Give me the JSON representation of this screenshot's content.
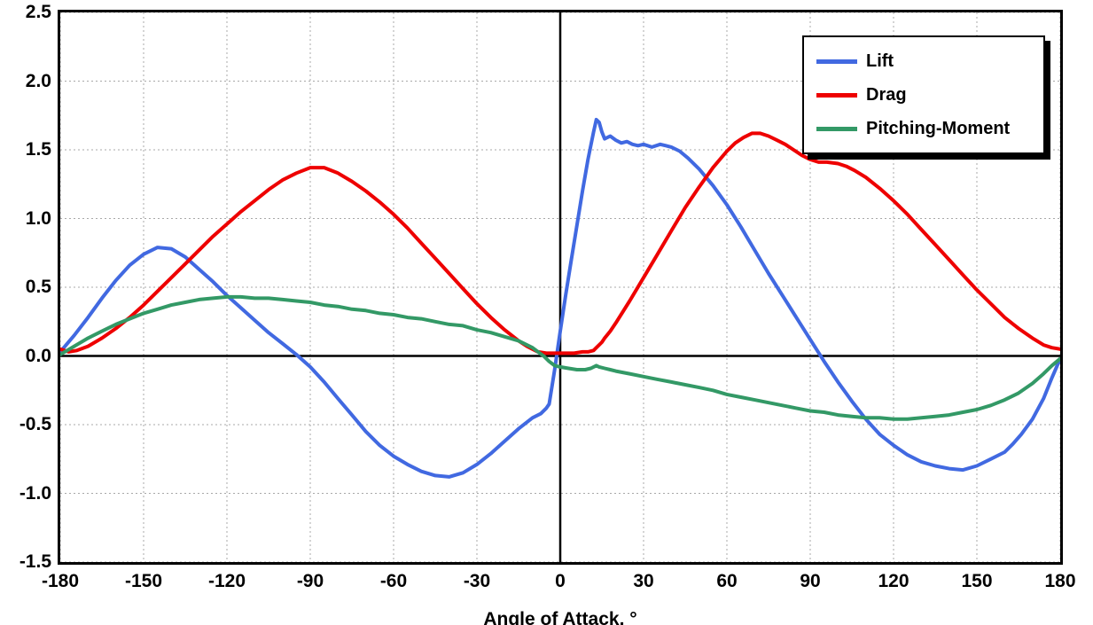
{
  "chart_data": {
    "type": "line",
    "title": "",
    "xlabel": "Angle of Attack, °",
    "ylabel": "",
    "xlim": [
      -180,
      180
    ],
    "ylim": [
      -1.5,
      2.5
    ],
    "xticks": [
      -180,
      -150,
      -120,
      -90,
      -60,
      -30,
      0,
      30,
      60,
      90,
      120,
      150,
      180
    ],
    "xtick_labels": [
      "-180",
      "-150",
      "-120",
      "-90",
      "-60",
      "-30",
      "0",
      "30",
      "60",
      "90",
      "120",
      "150",
      "180"
    ],
    "yticks": [
      -1.5,
      -1.0,
      -0.5,
      0.0,
      0.5,
      1.0,
      1.5,
      2.0,
      2.5
    ],
    "ytick_labels": [
      "-1.5",
      "-1.0",
      "-0.5",
      "0.0",
      "0.5",
      "1.0",
      "1.5",
      "2.0",
      "2.5"
    ],
    "grid": true,
    "zero_axes": true,
    "legend_position": "top-right",
    "series": [
      {
        "name": "Lift",
        "color": "#4169E1",
        "points": [
          [
            -180,
            0.03
          ],
          [
            -175,
            0.15
          ],
          [
            -170,
            0.28
          ],
          [
            -165,
            0.42
          ],
          [
            -160,
            0.55
          ],
          [
            -155,
            0.66
          ],
          [
            -150,
            0.74
          ],
          [
            -145,
            0.79
          ],
          [
            -140,
            0.78
          ],
          [
            -135,
            0.72
          ],
          [
            -130,
            0.63
          ],
          [
            -125,
            0.54
          ],
          [
            -120,
            0.44
          ],
          [
            -115,
            0.35
          ],
          [
            -110,
            0.26
          ],
          [
            -105,
            0.17
          ],
          [
            -100,
            0.09
          ],
          [
            -95,
            0.01
          ],
          [
            -90,
            -0.08
          ],
          [
            -85,
            -0.19
          ],
          [
            -80,
            -0.31
          ],
          [
            -75,
            -0.43
          ],
          [
            -70,
            -0.55
          ],
          [
            -65,
            -0.65
          ],
          [
            -60,
            -0.73
          ],
          [
            -55,
            -0.79
          ],
          [
            -50,
            -0.84
          ],
          [
            -45,
            -0.87
          ],
          [
            -40,
            -0.88
          ],
          [
            -35,
            -0.85
          ],
          [
            -30,
            -0.79
          ],
          [
            -25,
            -0.71
          ],
          [
            -20,
            -0.62
          ],
          [
            -15,
            -0.53
          ],
          [
            -10,
            -0.45
          ],
          [
            -7,
            -0.42
          ],
          [
            -5,
            -0.38
          ],
          [
            -4,
            -0.35
          ],
          [
            -2,
            -0.1
          ],
          [
            0,
            0.18
          ],
          [
            2,
            0.45
          ],
          [
            4,
            0.7
          ],
          [
            6,
            0.95
          ],
          [
            8,
            1.2
          ],
          [
            10,
            1.43
          ],
          [
            12,
            1.63
          ],
          [
            13,
            1.72
          ],
          [
            14,
            1.7
          ],
          [
            15,
            1.63
          ],
          [
            16,
            1.58
          ],
          [
            18,
            1.6
          ],
          [
            20,
            1.57
          ],
          [
            22,
            1.55
          ],
          [
            24,
            1.56
          ],
          [
            26,
            1.54
          ],
          [
            28,
            1.53
          ],
          [
            30,
            1.54
          ],
          [
            33,
            1.52
          ],
          [
            36,
            1.54
          ],
          [
            38,
            1.53
          ],
          [
            40,
            1.52
          ],
          [
            43,
            1.49
          ],
          [
            46,
            1.44
          ],
          [
            50,
            1.36
          ],
          [
            55,
            1.24
          ],
          [
            60,
            1.1
          ],
          [
            65,
            0.94
          ],
          [
            70,
            0.77
          ],
          [
            75,
            0.6
          ],
          [
            80,
            0.44
          ],
          [
            85,
            0.28
          ],
          [
            90,
            0.12
          ],
          [
            95,
            -0.04
          ],
          [
            100,
            -0.19
          ],
          [
            105,
            -0.33
          ],
          [
            110,
            -0.46
          ],
          [
            115,
            -0.57
          ],
          [
            120,
            -0.65
          ],
          [
            125,
            -0.72
          ],
          [
            130,
            -0.77
          ],
          [
            135,
            -0.8
          ],
          [
            140,
            -0.82
          ],
          [
            145,
            -0.83
          ],
          [
            150,
            -0.8
          ],
          [
            155,
            -0.75
          ],
          [
            160,
            -0.7
          ],
          [
            163,
            -0.64
          ],
          [
            166,
            -0.57
          ],
          [
            170,
            -0.46
          ],
          [
            174,
            -0.31
          ],
          [
            177,
            -0.16
          ],
          [
            180,
            -0.02
          ]
        ]
      },
      {
        "name": "Drag",
        "color": "#EE0000",
        "points": [
          [
            -180,
            0.05
          ],
          [
            -177,
            0.03
          ],
          [
            -174,
            0.04
          ],
          [
            -170,
            0.07
          ],
          [
            -165,
            0.13
          ],
          [
            -160,
            0.2
          ],
          [
            -155,
            0.28
          ],
          [
            -150,
            0.37
          ],
          [
            -145,
            0.47
          ],
          [
            -140,
            0.57
          ],
          [
            -135,
            0.67
          ],
          [
            -130,
            0.77
          ],
          [
            -125,
            0.87
          ],
          [
            -120,
            0.96
          ],
          [
            -115,
            1.05
          ],
          [
            -110,
            1.13
          ],
          [
            -105,
            1.21
          ],
          [
            -100,
            1.28
          ],
          [
            -95,
            1.33
          ],
          [
            -90,
            1.37
          ],
          [
            -85,
            1.37
          ],
          [
            -80,
            1.33
          ],
          [
            -75,
            1.27
          ],
          [
            -70,
            1.2
          ],
          [
            -65,
            1.12
          ],
          [
            -60,
            1.03
          ],
          [
            -55,
            0.93
          ],
          [
            -50,
            0.82
          ],
          [
            -45,
            0.71
          ],
          [
            -40,
            0.6
          ],
          [
            -35,
            0.49
          ],
          [
            -30,
            0.38
          ],
          [
            -25,
            0.28
          ],
          [
            -20,
            0.19
          ],
          [
            -15,
            0.11
          ],
          [
            -12,
            0.07
          ],
          [
            -10,
            0.05
          ],
          [
            -8,
            0.03
          ],
          [
            -5,
            0.02
          ],
          [
            0,
            0.02
          ],
          [
            5,
            0.02
          ],
          [
            8,
            0.03
          ],
          [
            10,
            0.03
          ],
          [
            12,
            0.04
          ],
          [
            13,
            0.06
          ],
          [
            14,
            0.08
          ],
          [
            15,
            0.1
          ],
          [
            16,
            0.13
          ],
          [
            18,
            0.18
          ],
          [
            20,
            0.24
          ],
          [
            25,
            0.4
          ],
          [
            30,
            0.57
          ],
          [
            35,
            0.74
          ],
          [
            40,
            0.91
          ],
          [
            45,
            1.08
          ],
          [
            50,
            1.23
          ],
          [
            55,
            1.37
          ],
          [
            60,
            1.49
          ],
          [
            63,
            1.55
          ],
          [
            66,
            1.59
          ],
          [
            69,
            1.62
          ],
          [
            72,
            1.62
          ],
          [
            75,
            1.6
          ],
          [
            78,
            1.57
          ],
          [
            81,
            1.54
          ],
          [
            84,
            1.5
          ],
          [
            87,
            1.46
          ],
          [
            90,
            1.43
          ],
          [
            93,
            1.41
          ],
          [
            96,
            1.41
          ],
          [
            100,
            1.4
          ],
          [
            103,
            1.38
          ],
          [
            106,
            1.35
          ],
          [
            110,
            1.3
          ],
          [
            115,
            1.22
          ],
          [
            120,
            1.13
          ],
          [
            125,
            1.03
          ],
          [
            130,
            0.92
          ],
          [
            135,
            0.81
          ],
          [
            140,
            0.7
          ],
          [
            145,
            0.59
          ],
          [
            150,
            0.48
          ],
          [
            155,
            0.38
          ],
          [
            160,
            0.28
          ],
          [
            165,
            0.2
          ],
          [
            170,
            0.13
          ],
          [
            174,
            0.08
          ],
          [
            177,
            0.06
          ],
          [
            180,
            0.05
          ]
        ]
      },
      {
        "name": "Pitching-Moment",
        "color": "#339966",
        "points": [
          [
            -180,
            0.01
          ],
          [
            -175,
            0.07
          ],
          [
            -170,
            0.13
          ],
          [
            -165,
            0.18
          ],
          [
            -160,
            0.23
          ],
          [
            -155,
            0.27
          ],
          [
            -150,
            0.31
          ],
          [
            -145,
            0.34
          ],
          [
            -140,
            0.37
          ],
          [
            -135,
            0.39
          ],
          [
            -130,
            0.41
          ],
          [
            -125,
            0.42
          ],
          [
            -120,
            0.43
          ],
          [
            -115,
            0.43
          ],
          [
            -110,
            0.42
          ],
          [
            -105,
            0.42
          ],
          [
            -100,
            0.41
          ],
          [
            -95,
            0.4
          ],
          [
            -90,
            0.39
          ],
          [
            -85,
            0.37
          ],
          [
            -80,
            0.36
          ],
          [
            -75,
            0.34
          ],
          [
            -70,
            0.33
          ],
          [
            -65,
            0.31
          ],
          [
            -60,
            0.3
          ],
          [
            -55,
            0.28
          ],
          [
            -50,
            0.27
          ],
          [
            -45,
            0.25
          ],
          [
            -40,
            0.23
          ],
          [
            -35,
            0.22
          ],
          [
            -30,
            0.19
          ],
          [
            -25,
            0.17
          ],
          [
            -20,
            0.14
          ],
          [
            -15,
            0.11
          ],
          [
            -12,
            0.08
          ],
          [
            -10,
            0.06
          ],
          [
            -8,
            0.03
          ],
          [
            -6,
            0.0
          ],
          [
            -4,
            -0.04
          ],
          [
            -2,
            -0.07
          ],
          [
            0,
            -0.08
          ],
          [
            3,
            -0.09
          ],
          [
            6,
            -0.1
          ],
          [
            9,
            -0.1
          ],
          [
            11,
            -0.09
          ],
          [
            13,
            -0.07
          ],
          [
            14,
            -0.08
          ],
          [
            16,
            -0.09
          ],
          [
            18,
            -0.1
          ],
          [
            20,
            -0.11
          ],
          [
            25,
            -0.13
          ],
          [
            30,
            -0.15
          ],
          [
            35,
            -0.17
          ],
          [
            40,
            -0.19
          ],
          [
            45,
            -0.21
          ],
          [
            50,
            -0.23
          ],
          [
            55,
            -0.25
          ],
          [
            60,
            -0.28
          ],
          [
            65,
            -0.3
          ],
          [
            70,
            -0.32
          ],
          [
            75,
            -0.34
          ],
          [
            80,
            -0.36
          ],
          [
            85,
            -0.38
          ],
          [
            90,
            -0.4
          ],
          [
            95,
            -0.41
          ],
          [
            100,
            -0.43
          ],
          [
            105,
            -0.44
          ],
          [
            110,
            -0.45
          ],
          [
            115,
            -0.45
          ],
          [
            120,
            -0.46
          ],
          [
            125,
            -0.46
          ],
          [
            130,
            -0.45
          ],
          [
            135,
            -0.44
          ],
          [
            140,
            -0.43
          ],
          [
            145,
            -0.41
          ],
          [
            150,
            -0.39
          ],
          [
            155,
            -0.36
          ],
          [
            160,
            -0.32
          ],
          [
            165,
            -0.27
          ],
          [
            170,
            -0.2
          ],
          [
            174,
            -0.13
          ],
          [
            177,
            -0.07
          ],
          [
            180,
            -0.02
          ]
        ]
      }
    ]
  },
  "colors": {
    "background": "#FFFFFF",
    "plot_border": "#000000",
    "grid": "#A8A8A8",
    "zero_axis": "#000000",
    "legend_border": "#000000",
    "legend_shadow": "#000000"
  }
}
